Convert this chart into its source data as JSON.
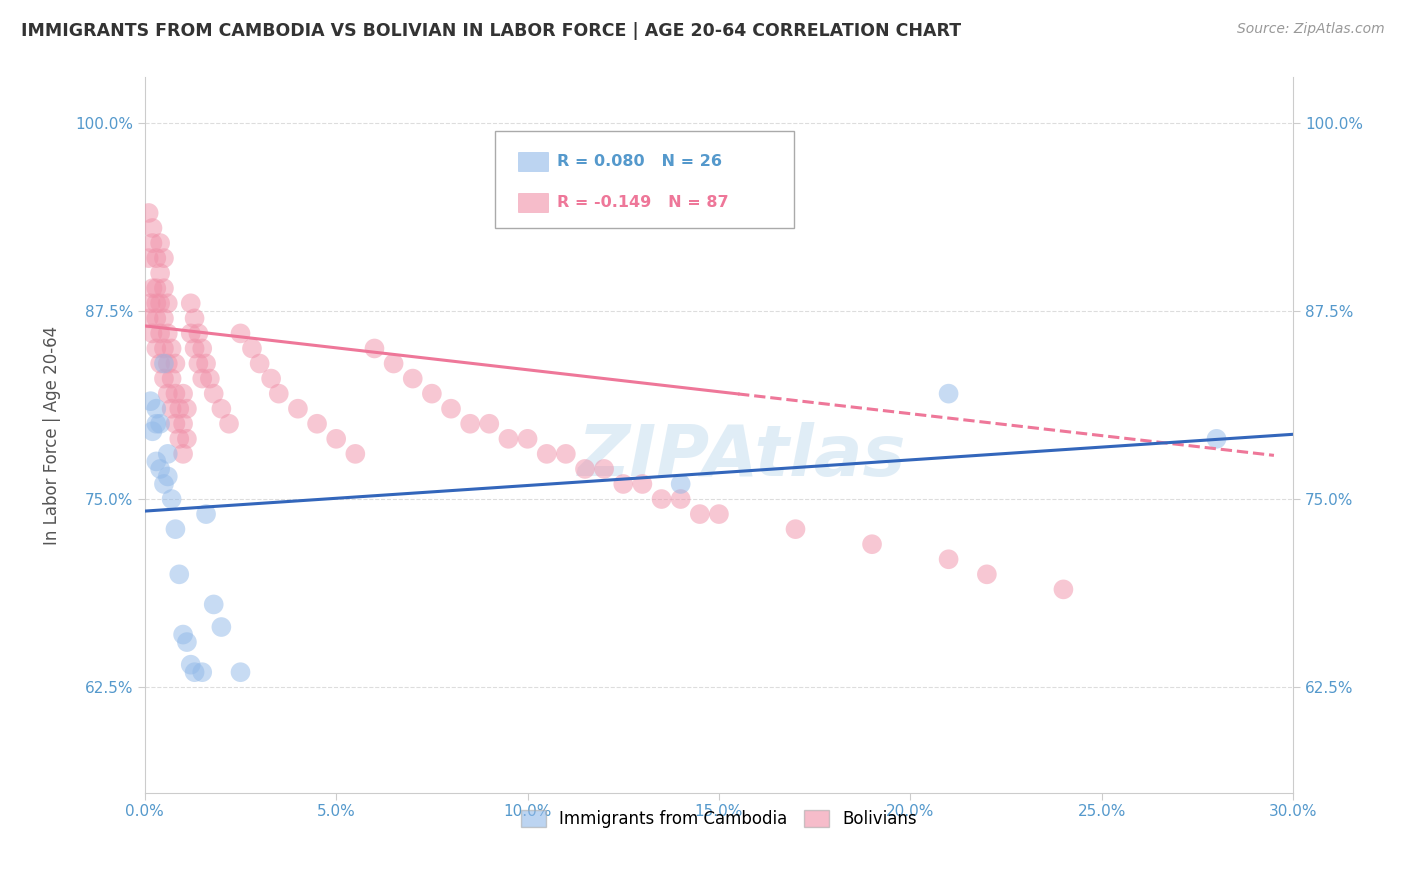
{
  "title": "IMMIGRANTS FROM CAMBODIA VS BOLIVIAN IN LABOR FORCE | AGE 20-64 CORRELATION CHART",
  "source": "Source: ZipAtlas.com",
  "ylabel": "In Labor Force | Age 20-64",
  "xlim": [
    0.0,
    0.3
  ],
  "ylim": [
    0.555,
    1.03
  ],
  "xticks": [
    0.0,
    0.05,
    0.1,
    0.15,
    0.2,
    0.25,
    0.3
  ],
  "xticklabels": [
    "0.0%",
    "5.0%",
    "10.0%",
    "15.0%",
    "20.0%",
    "25.0%",
    "30.0%"
  ],
  "yticks": [
    0.625,
    0.75,
    0.875,
    1.0
  ],
  "yticklabels": [
    "62.5%",
    "75.0%",
    "87.5%",
    "100.0%"
  ],
  "cambodia_color": "#90b8e8",
  "bolivian_color": "#f090a8",
  "background_color": "#ffffff",
  "grid_color": "#dddddd",
  "axis_color": "#cccccc",
  "tick_color": "#5599cc",
  "title_color": "#333333",
  "source_color": "#999999",
  "ylabel_color": "#555555",
  "blue_line_color": "#3366bb",
  "pink_line_color": "#ee7799",
  "watermark_color": "#c8dff0",
  "cambodia_x": [
    0.0015,
    0.002,
    0.003,
    0.003,
    0.003,
    0.004,
    0.004,
    0.005,
    0.005,
    0.006,
    0.006,
    0.007,
    0.008,
    0.009,
    0.01,
    0.011,
    0.012,
    0.013,
    0.015,
    0.016,
    0.018,
    0.02,
    0.025,
    0.14,
    0.21,
    0.28
  ],
  "cambodia_y": [
    0.815,
    0.795,
    0.8,
    0.775,
    0.81,
    0.8,
    0.77,
    0.76,
    0.84,
    0.78,
    0.765,
    0.75,
    0.73,
    0.7,
    0.66,
    0.655,
    0.64,
    0.635,
    0.635,
    0.74,
    0.68,
    0.665,
    0.635,
    0.76,
    0.82,
    0.79
  ],
  "bolivian_x": [
    0.001,
    0.001,
    0.001,
    0.0015,
    0.002,
    0.002,
    0.002,
    0.002,
    0.003,
    0.003,
    0.003,
    0.003,
    0.003,
    0.004,
    0.004,
    0.004,
    0.004,
    0.004,
    0.005,
    0.005,
    0.005,
    0.005,
    0.005,
    0.006,
    0.006,
    0.006,
    0.006,
    0.007,
    0.007,
    0.007,
    0.008,
    0.008,
    0.008,
    0.009,
    0.009,
    0.01,
    0.01,
    0.01,
    0.011,
    0.011,
    0.012,
    0.012,
    0.013,
    0.013,
    0.014,
    0.014,
    0.015,
    0.015,
    0.016,
    0.017,
    0.018,
    0.02,
    0.022,
    0.025,
    0.028,
    0.03,
    0.033,
    0.035,
    0.04,
    0.045,
    0.05,
    0.055,
    0.06,
    0.065,
    0.07,
    0.075,
    0.08,
    0.09,
    0.1,
    0.11,
    0.12,
    0.13,
    0.14,
    0.15,
    0.17,
    0.19,
    0.21,
    0.22,
    0.24,
    0.085,
    0.095,
    0.105,
    0.115,
    0.125,
    0.135,
    0.145
  ],
  "bolivian_y": [
    0.87,
    0.91,
    0.94,
    0.88,
    0.86,
    0.89,
    0.92,
    0.93,
    0.85,
    0.87,
    0.89,
    0.91,
    0.88,
    0.84,
    0.86,
    0.88,
    0.9,
    0.92,
    0.83,
    0.85,
    0.87,
    0.89,
    0.91,
    0.82,
    0.84,
    0.86,
    0.88,
    0.81,
    0.83,
    0.85,
    0.8,
    0.82,
    0.84,
    0.79,
    0.81,
    0.78,
    0.8,
    0.82,
    0.79,
    0.81,
    0.88,
    0.86,
    0.87,
    0.85,
    0.86,
    0.84,
    0.85,
    0.83,
    0.84,
    0.83,
    0.82,
    0.81,
    0.8,
    0.86,
    0.85,
    0.84,
    0.83,
    0.82,
    0.81,
    0.8,
    0.79,
    0.78,
    0.85,
    0.84,
    0.83,
    0.82,
    0.81,
    0.8,
    0.79,
    0.78,
    0.77,
    0.76,
    0.75,
    0.74,
    0.73,
    0.72,
    0.71,
    0.7,
    0.69,
    0.8,
    0.79,
    0.78,
    0.77,
    0.76,
    0.75,
    0.74
  ],
  "blue_trend_x0": 0.0,
  "blue_trend_y0": 0.742,
  "blue_trend_x1": 0.3,
  "blue_trend_y1": 0.793,
  "pink_trend_x0": 0.0,
  "pink_trend_y0": 0.865,
  "pink_trend_solid_x1": 0.155,
  "pink_trend_dash_x1": 0.295,
  "pink_trend_y1": 0.779
}
